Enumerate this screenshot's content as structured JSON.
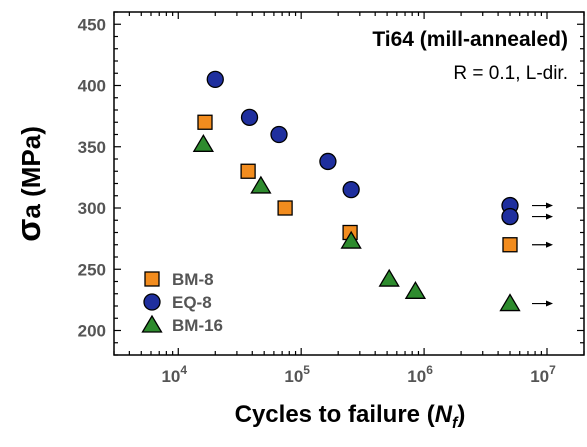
{
  "chart_data": {
    "type": "scatter",
    "title": "Ti64 (mill-annealed)",
    "subtitle": "R = 0.1, L-dir.",
    "xlabel": "Cycles to failure (",
    "xlabel_symbol": "N",
    "xlabel_sub": "f",
    "xlabel_close": ")",
    "ylabel_symbol": "σ",
    "ylabel_sub": "a",
    "ylabel_unit": " (MPa)",
    "x_scale": "log",
    "xlim": [
      3000,
      20000000
    ],
    "ylim": [
      180,
      460
    ],
    "x_ticks": [
      10000,
      100000,
      1000000,
      10000000
    ],
    "x_tick_labels": [
      {
        "base": "10",
        "exp": "4"
      },
      {
        "base": "10",
        "exp": "5"
      },
      {
        "base": "10",
        "exp": "6"
      },
      {
        "base": "10",
        "exp": "7"
      }
    ],
    "y_ticks": [
      200,
      250,
      300,
      350,
      400,
      450
    ],
    "y_tick_labels": [
      "200",
      "250",
      "300",
      "350",
      "400",
      "450"
    ],
    "grid": false,
    "legend_position": "bottom-left",
    "runout_arrow_color": "#000000",
    "series": [
      {
        "name": "BM-8",
        "marker": "square",
        "color": "#F28C1E",
        "points": [
          {
            "x": 16500,
            "y": 370
          },
          {
            "x": 37000,
            "y": 330
          },
          {
            "x": 74000,
            "y": 300
          },
          {
            "x": 250000,
            "y": 280
          },
          {
            "x": 5000000,
            "y": 270,
            "runout": true
          }
        ]
      },
      {
        "name": "EQ-8",
        "marker": "circle",
        "color": "#1F2F9E",
        "points": [
          {
            "x": 20000,
            "y": 405
          },
          {
            "x": 38000,
            "y": 374
          },
          {
            "x": 66000,
            "y": 360
          },
          {
            "x": 165000,
            "y": 338
          },
          {
            "x": 255000,
            "y": 315
          },
          {
            "x": 5000000,
            "y": 302,
            "runout": true
          },
          {
            "x": 5000000,
            "y": 293,
            "runout": true
          }
        ]
      },
      {
        "name": "BM-16",
        "marker": "triangle",
        "color": "#2E8B2E",
        "points": [
          {
            "x": 16000,
            "y": 352
          },
          {
            "x": 47000,
            "y": 318
          },
          {
            "x": 255000,
            "y": 273
          },
          {
            "x": 520000,
            "y": 242
          },
          {
            "x": 850000,
            "y": 232
          },
          {
            "x": 5000000,
            "y": 222,
            "runout": true
          }
        ]
      }
    ]
  }
}
